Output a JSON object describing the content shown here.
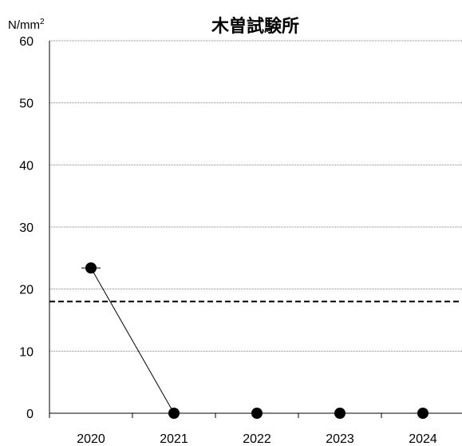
{
  "chart_data": {
    "type": "line",
    "title": "木曽試験所",
    "ylabel": "N/mm",
    "ylabel_superscript": "2",
    "categories": [
      "2020",
      "2021",
      "2022",
      "2023",
      "2024"
    ],
    "series": [
      {
        "values": [
          23.4,
          0,
          0,
          0,
          0
        ]
      }
    ],
    "error_bars": [
      0.5,
      0,
      0,
      0,
      0
    ],
    "reference_line": {
      "value": 18,
      "style": "dashed"
    },
    "ylim": [
      0,
      60
    ],
    "yticks": [
      0,
      10,
      20,
      30,
      40,
      50,
      60
    ],
    "grid": "horizontal dotted",
    "colors": {
      "series": "#000000",
      "grid": "#7f7f7f",
      "reference": "#000000"
    }
  }
}
